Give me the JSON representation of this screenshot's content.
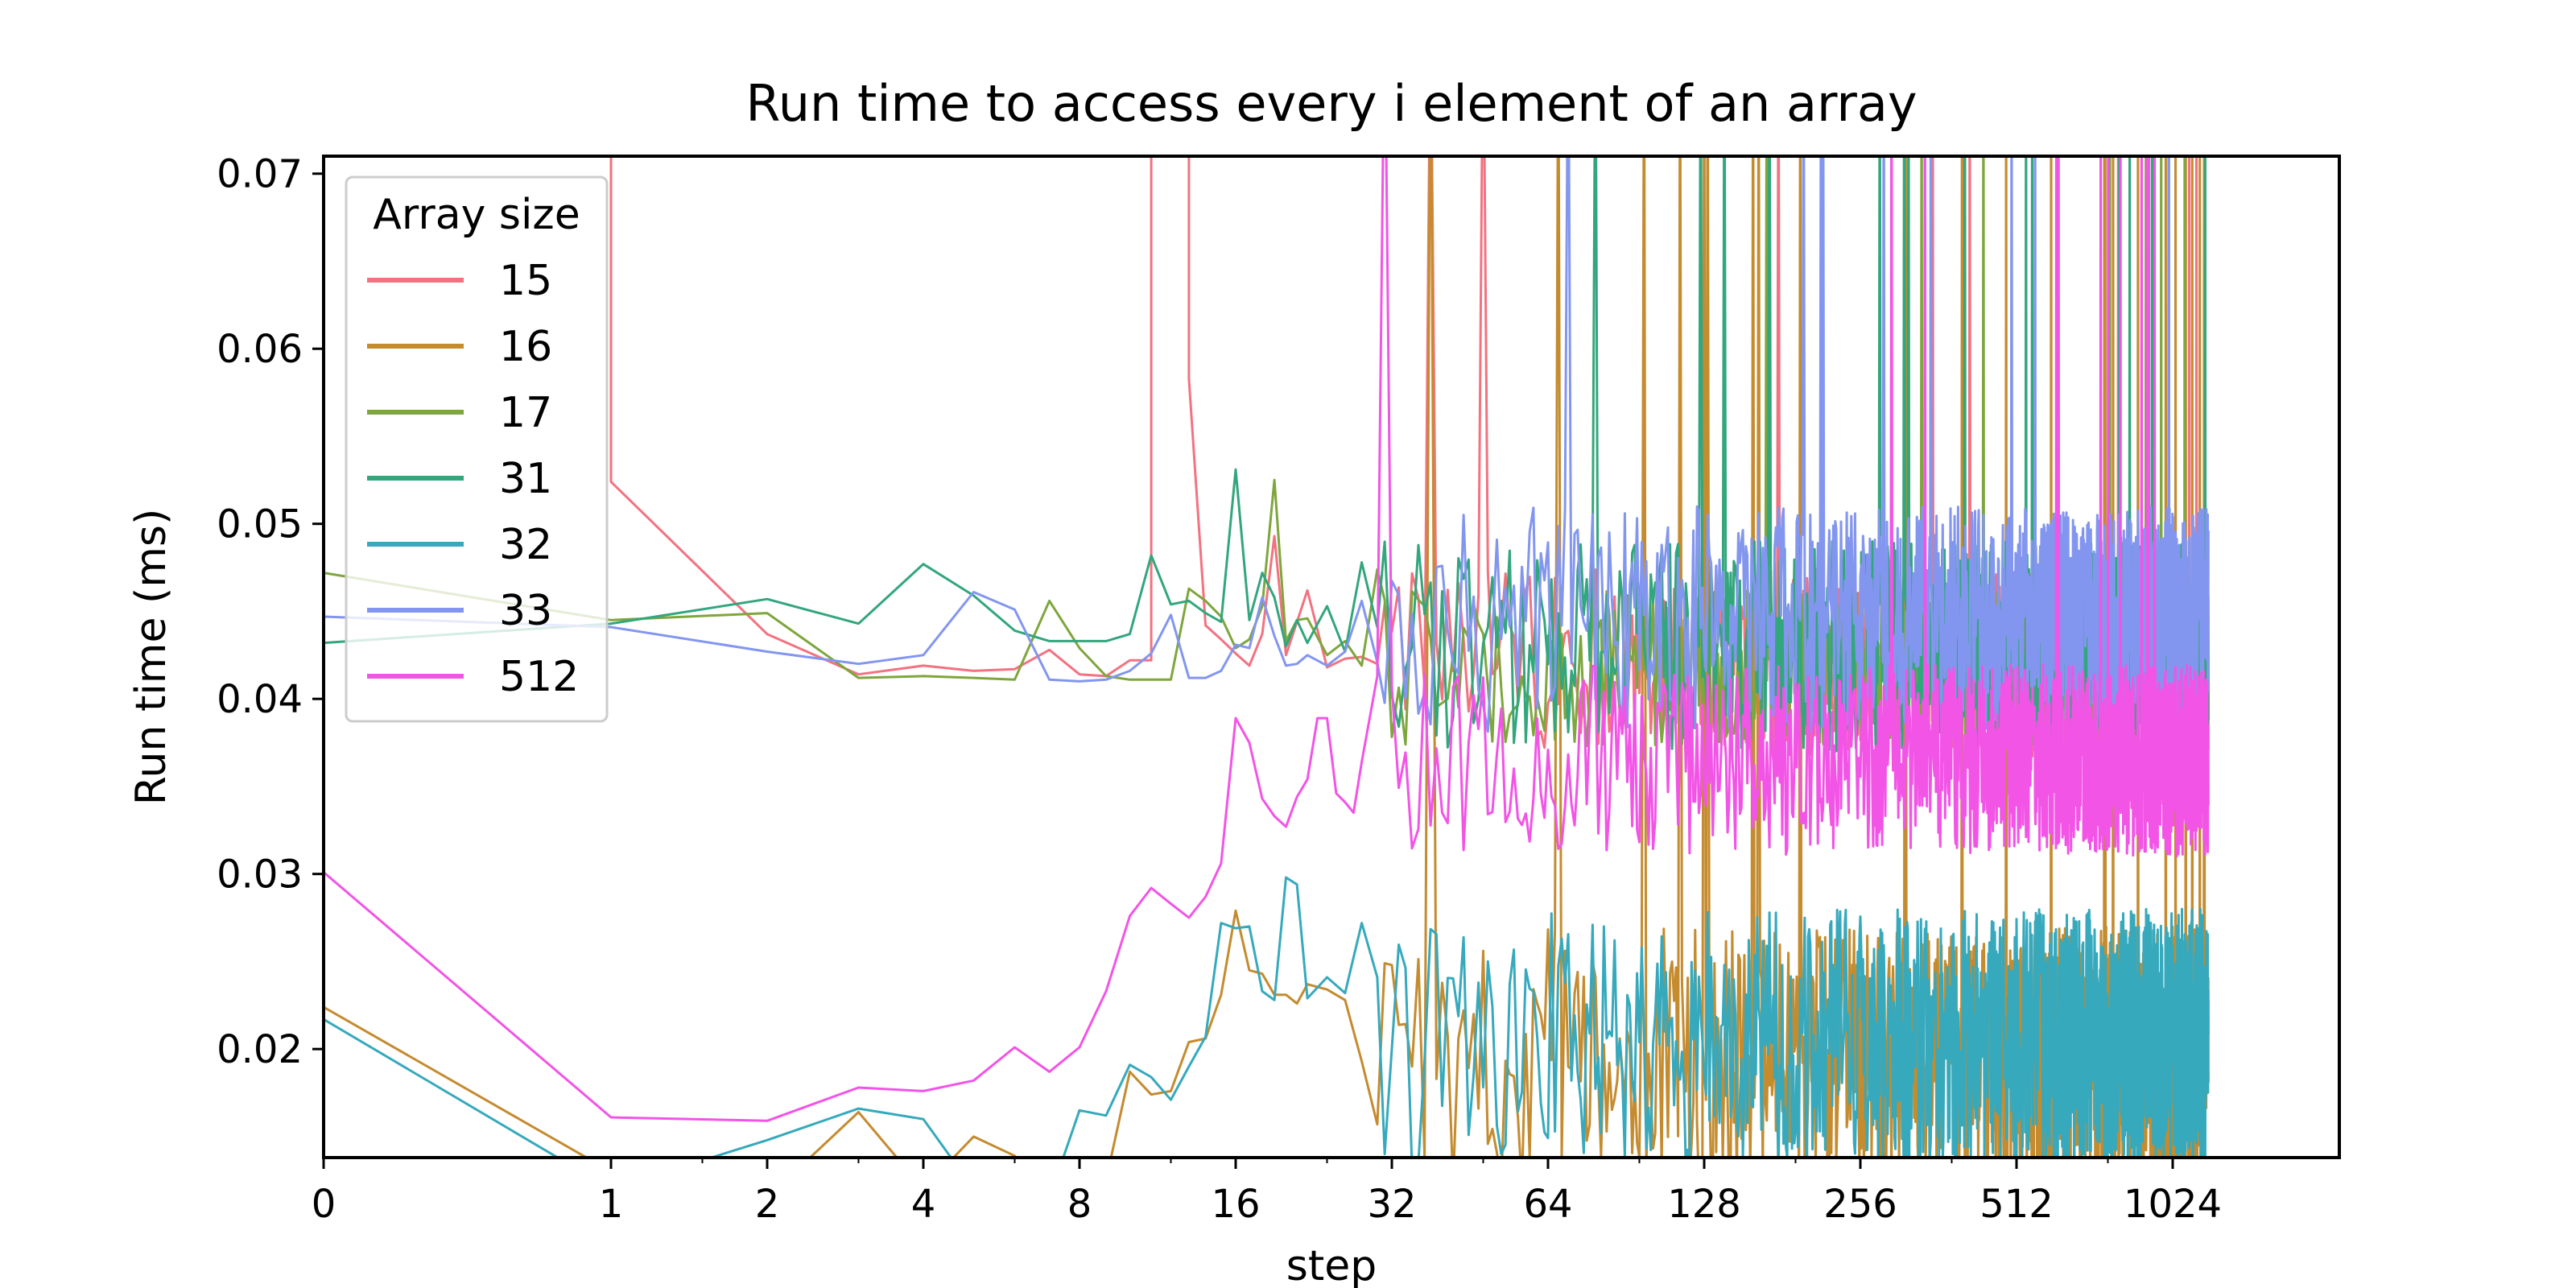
{
  "chart_data": {
    "type": "line",
    "title": "Run time to access every i element of an array",
    "xlabel": "step",
    "ylabel": "Run time (ms)",
    "xscale": "symlog",
    "xlim": [
      0,
      1200
    ],
    "ylim": [
      0.0138,
      0.071
    ],
    "grid": false,
    "xticks": [
      {
        "value": 0,
        "label": "0"
      },
      {
        "value": 1,
        "label": "1"
      },
      {
        "value": 2,
        "label": "2"
      },
      {
        "value": 4,
        "label": "4"
      },
      {
        "value": 8,
        "label": "8"
      },
      {
        "value": 16,
        "label": "16"
      },
      {
        "value": 32,
        "label": "32"
      },
      {
        "value": 64,
        "label": "64"
      },
      {
        "value": 128,
        "label": "128"
      },
      {
        "value": 256,
        "label": "256"
      },
      {
        "value": 512,
        "label": "512"
      },
      {
        "value": 1024,
        "label": "1024"
      }
    ],
    "yticks": [
      {
        "value": 0.02,
        "label": "0.02"
      },
      {
        "value": 0.03,
        "label": "0.03"
      },
      {
        "value": 0.04,
        "label": "0.04"
      },
      {
        "value": 0.05,
        "label": "0.05"
      },
      {
        "value": 0.06,
        "label": "0.06"
      },
      {
        "value": 0.07,
        "label": "0.07"
      }
    ],
    "legend": {
      "title": "Array size",
      "position": "upper-left"
    },
    "series": [
      {
        "name": "15",
        "color": "#f37280",
        "x": [
          0,
          1,
          1,
          2,
          3,
          4,
          5,
          6,
          7,
          8,
          9,
          10,
          11,
          11,
          12,
          13,
          13,
          14,
          15,
          16,
          17,
          18,
          19,
          20,
          22,
          24,
          26,
          28,
          30
        ],
        "y": [
          0.0755,
          0.0755,
          0.0524,
          0.0437,
          0.0414,
          0.0419,
          0.0416,
          0.0417,
          0.0428,
          0.0414,
          0.0413,
          0.0422,
          0.0422,
          0.0755,
          0.0755,
          0.0755,
          0.0583,
          0.0442,
          0.0434,
          0.0426,
          0.0419,
          0.0437,
          0.0493,
          0.0425,
          0.0462,
          0.0418,
          0.0423,
          0.0424,
          0.042
        ],
        "noise": {
          "start": 30,
          "end": 1200,
          "base": 0.0422,
          "amp": 0.0055,
          "spike_rate": 0.008
        }
      },
      {
        "name": "16",
        "color": "#c48b2f",
        "x": [
          0,
          1,
          2,
          3,
          4,
          5,
          6,
          7,
          8,
          9,
          10,
          11,
          12,
          13,
          14,
          15,
          16,
          17,
          18,
          19,
          20,
          21,
          22,
          24,
          26,
          28,
          30
        ],
        "y": [
          0.0224,
          0.013,
          0.0115,
          0.0164,
          0.012,
          0.015,
          0.0139,
          0.0115,
          0.012,
          0.0125,
          0.0187,
          0.0174,
          0.0176,
          0.0204,
          0.0206,
          0.0231,
          0.0279,
          0.0245,
          0.0243,
          0.0231,
          0.0231,
          0.0226,
          0.0237,
          0.0234,
          0.0228,
          0.0193,
          0.0157
        ],
        "noise": {
          "start": 30,
          "end": 1200,
          "base": 0.0195,
          "amp": 0.0075,
          "spike_rate": 0.02
        }
      },
      {
        "name": "17",
        "color": "#7ea63d",
        "x": [
          0,
          1,
          2,
          3,
          4,
          5,
          6,
          7,
          8,
          9,
          10,
          11,
          12,
          13,
          14,
          15,
          16,
          17,
          18,
          19,
          20,
          21,
          22,
          24,
          26,
          28,
          30
        ],
        "y": [
          0.0472,
          0.0445,
          0.0449,
          0.0412,
          0.0413,
          0.0412,
          0.0411,
          0.0456,
          0.0429,
          0.0413,
          0.0411,
          0.0411,
          0.0411,
          0.0463,
          0.0456,
          0.0447,
          0.0429,
          0.0434,
          0.0453,
          0.0525,
          0.0433,
          0.0445,
          0.0446,
          0.0425,
          0.0433,
          0.0419,
          0.0474
        ],
        "noise": {
          "start": 30,
          "end": 1200,
          "base": 0.0418,
          "amp": 0.0045,
          "spike_rate": 0.006
        }
      },
      {
        "name": "31",
        "color": "#32a67c",
        "x": [
          0,
          1,
          2,
          3,
          4,
          5,
          6,
          7,
          8,
          9,
          10,
          11,
          12,
          13,
          14,
          15,
          16,
          17,
          18,
          19,
          20,
          21,
          22,
          24,
          26,
          28,
          30
        ],
        "y": [
          0.0432,
          0.0443,
          0.0457,
          0.0443,
          0.0477,
          0.0459,
          0.0439,
          0.0433,
          0.0433,
          0.0433,
          0.0437,
          0.0482,
          0.0454,
          0.0456,
          0.0449,
          0.0444,
          0.0531,
          0.0445,
          0.0472,
          0.0458,
          0.043,
          0.0445,
          0.0432,
          0.0453,
          0.0427,
          0.0478,
          0.0441
        ],
        "noise": {
          "start": 30,
          "end": 1200,
          "base": 0.043,
          "amp": 0.006,
          "spike_rate": 0.01
        }
      },
      {
        "name": "32",
        "color": "#36a9bd",
        "x": [
          0,
          1,
          2,
          3,
          4,
          5,
          6,
          7,
          8,
          9,
          10,
          11,
          12,
          13,
          14,
          15,
          16,
          17,
          18,
          19,
          20,
          21,
          22,
          24,
          26,
          28,
          30
        ],
        "y": [
          0.0217,
          0.012,
          0.0148,
          0.0166,
          0.016,
          0.012,
          0.0118,
          0.0115,
          0.0165,
          0.0162,
          0.0191,
          0.0184,
          0.0171,
          0.019,
          0.0207,
          0.0272,
          0.0269,
          0.027,
          0.0233,
          0.0228,
          0.0298,
          0.0294,
          0.0229,
          0.0241,
          0.0232,
          0.0272,
          0.0241
        ],
        "noise": {
          "start": 30,
          "end": 1200,
          "base": 0.0205,
          "amp": 0.0075,
          "spike_rate": 0.0
        }
      },
      {
        "name": "33",
        "color": "#8396ef",
        "x": [
          0,
          1,
          2,
          3,
          4,
          5,
          6,
          7,
          8,
          9,
          10,
          11,
          12,
          13,
          14,
          15,
          16,
          17,
          18,
          19,
          20,
          21,
          22,
          24,
          26,
          28,
          30
        ],
        "y": [
          0.0447,
          0.0441,
          0.0427,
          0.042,
          0.0425,
          0.0461,
          0.0451,
          0.0411,
          0.041,
          0.0411,
          0.0416,
          0.0426,
          0.0448,
          0.0412,
          0.0412,
          0.0416,
          0.0431,
          0.0429,
          0.0458,
          0.0436,
          0.0419,
          0.042,
          0.0425,
          0.0419,
          0.0427,
          0.0456,
          0.0421
        ],
        "noise": {
          "start": 30,
          "end": 1200,
          "base": 0.0445,
          "amp": 0.0065,
          "spike_rate": 0.008
        }
      },
      {
        "name": "512",
        "color": "#f254e6",
        "x": [
          0,
          1,
          2,
          3,
          4,
          5,
          6,
          7,
          8,
          9,
          10,
          11,
          12,
          13,
          14,
          15,
          16,
          17,
          18,
          19,
          20,
          21,
          22,
          23,
          24,
          25,
          26,
          27,
          28,
          30
        ],
        "y": [
          0.0301,
          0.0161,
          0.0159,
          0.0178,
          0.0176,
          0.0182,
          0.0201,
          0.0187,
          0.0201,
          0.0233,
          0.0276,
          0.0292,
          0.0283,
          0.0275,
          0.0287,
          0.0306,
          0.0389,
          0.0375,
          0.0343,
          0.0333,
          0.0327,
          0.0344,
          0.0354,
          0.0389,
          0.0389,
          0.0346,
          0.0341,
          0.0335,
          0.0364,
          0.0413
        ],
        "noise": {
          "start": 30,
          "end": 1200,
          "base": 0.0365,
          "amp": 0.0055,
          "spike_rate": 0.01
        }
      }
    ]
  }
}
